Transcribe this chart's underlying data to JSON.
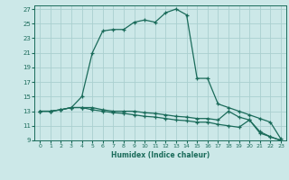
{
  "xlabel": "Humidex (Indice chaleur)",
  "bg_color": "#cce8e8",
  "grid_color": "#aacfcf",
  "line_color": "#1a6b5a",
  "xlim": [
    -0.5,
    23.5
  ],
  "ylim": [
    9,
    27.5
  ],
  "xticks": [
    0,
    1,
    2,
    3,
    4,
    5,
    6,
    7,
    8,
    9,
    10,
    11,
    12,
    13,
    14,
    15,
    16,
    17,
    18,
    19,
    20,
    21,
    22,
    23
  ],
  "yticks": [
    9,
    11,
    13,
    15,
    17,
    19,
    21,
    23,
    25,
    27
  ],
  "series1_x": [
    0,
    1,
    2,
    3,
    4,
    5,
    6,
    7,
    8,
    9,
    10,
    11,
    12,
    13,
    14,
    15,
    16,
    17,
    18,
    19,
    20,
    21,
    22,
    23
  ],
  "series1_y": [
    13.0,
    13.0,
    13.2,
    13.5,
    15.0,
    21.0,
    24.0,
    24.2,
    24.2,
    25.2,
    25.5,
    25.2,
    26.5,
    27.0,
    26.2,
    17.5,
    17.5,
    14.0,
    13.5,
    13.0,
    12.5,
    12.0,
    11.5,
    9.2
  ],
  "series2_x": [
    0,
    1,
    2,
    3,
    4,
    5,
    6,
    7,
    8,
    9,
    10,
    11,
    12,
    13,
    14,
    15,
    16,
    17,
    18,
    19,
    20,
    21,
    22,
    23
  ],
  "series2_y": [
    13.0,
    13.0,
    13.2,
    13.5,
    13.5,
    13.5,
    13.2,
    13.0,
    13.0,
    13.0,
    12.8,
    12.7,
    12.5,
    12.3,
    12.2,
    12.0,
    12.0,
    11.8,
    13.0,
    12.2,
    11.8,
    10.2,
    9.5,
    9.0
  ],
  "series3_x": [
    0,
    1,
    2,
    3,
    4,
    5,
    6,
    7,
    8,
    9,
    10,
    11,
    12,
    13,
    14,
    15,
    16,
    17,
    18,
    19,
    20,
    21,
    22,
    23
  ],
  "series3_y": [
    13.0,
    13.0,
    13.2,
    13.5,
    13.5,
    13.2,
    13.0,
    12.8,
    12.7,
    12.5,
    12.3,
    12.2,
    12.0,
    11.8,
    11.7,
    11.5,
    11.5,
    11.2,
    11.0,
    10.8,
    11.8,
    10.0,
    9.5,
    9.0
  ]
}
